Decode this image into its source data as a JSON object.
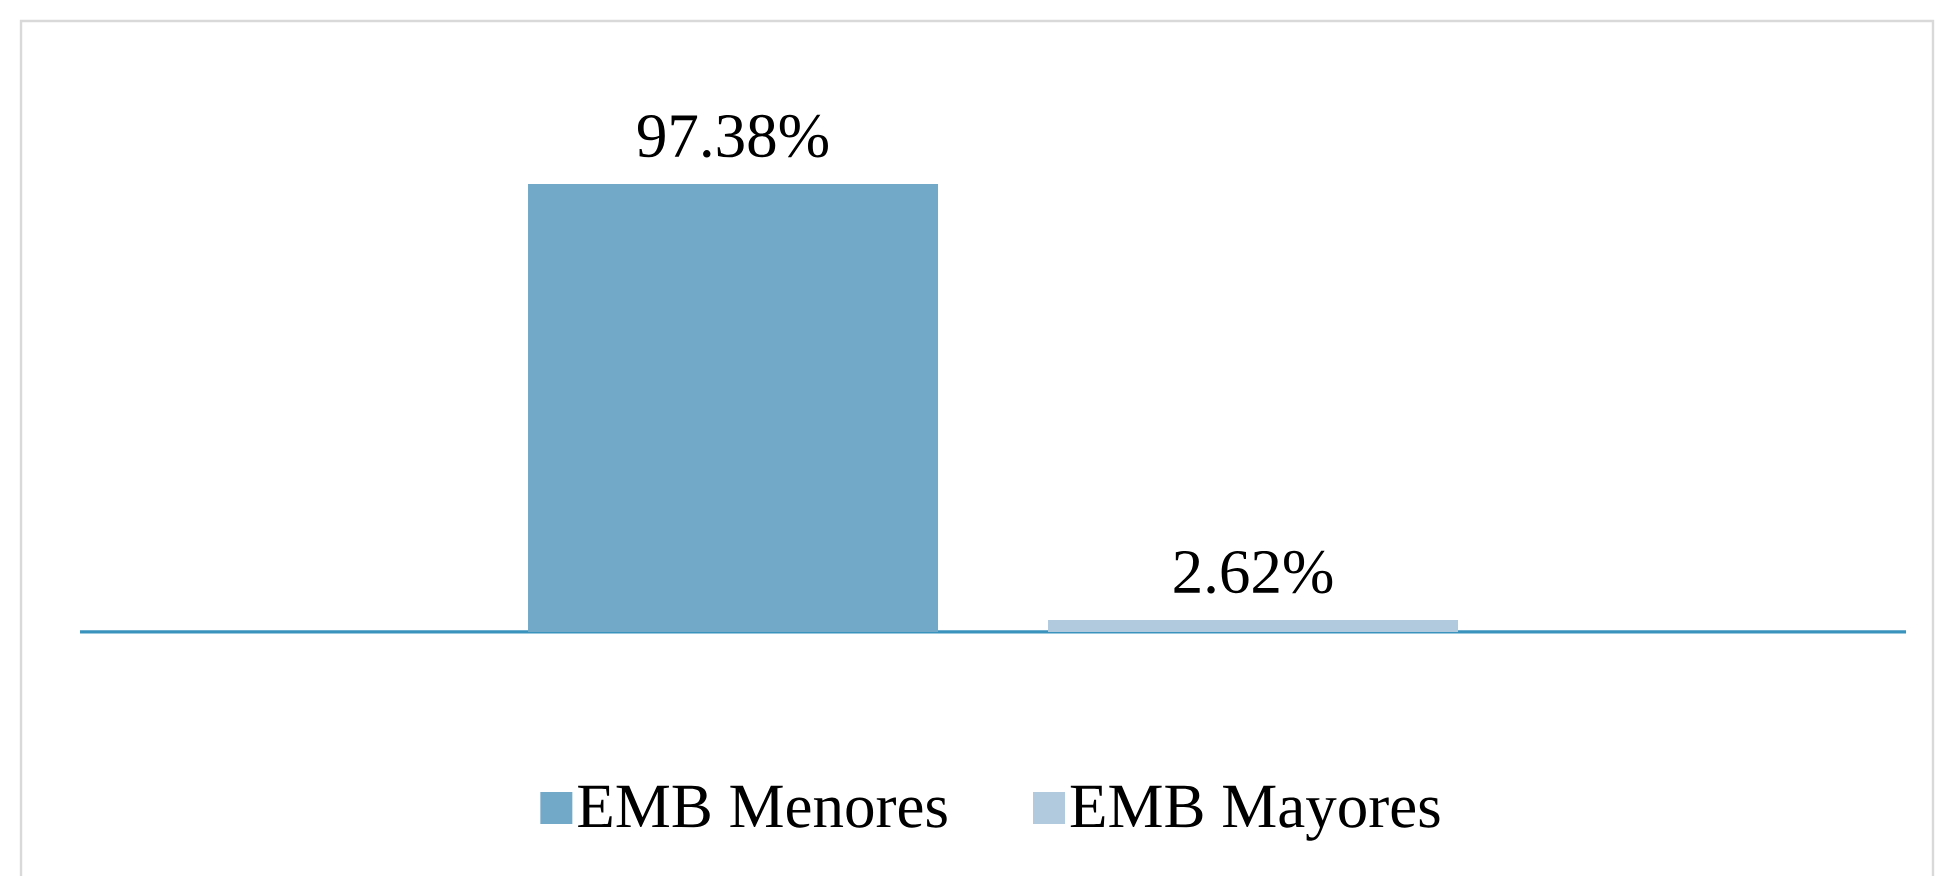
{
  "chart_data": {
    "type": "bar",
    "categories": [
      null
    ],
    "series": [
      {
        "name": "EMB Menores",
        "color": "#72a9c8",
        "values": [
          97.38
        ],
        "value_labels": [
          "97.38%"
        ]
      },
      {
        "name": "EMB Mayores",
        "color": "#b2cade",
        "values": [
          2.62
        ],
        "value_labels": [
          "2.62%"
        ]
      }
    ],
    "legend": "bottom"
  }
}
